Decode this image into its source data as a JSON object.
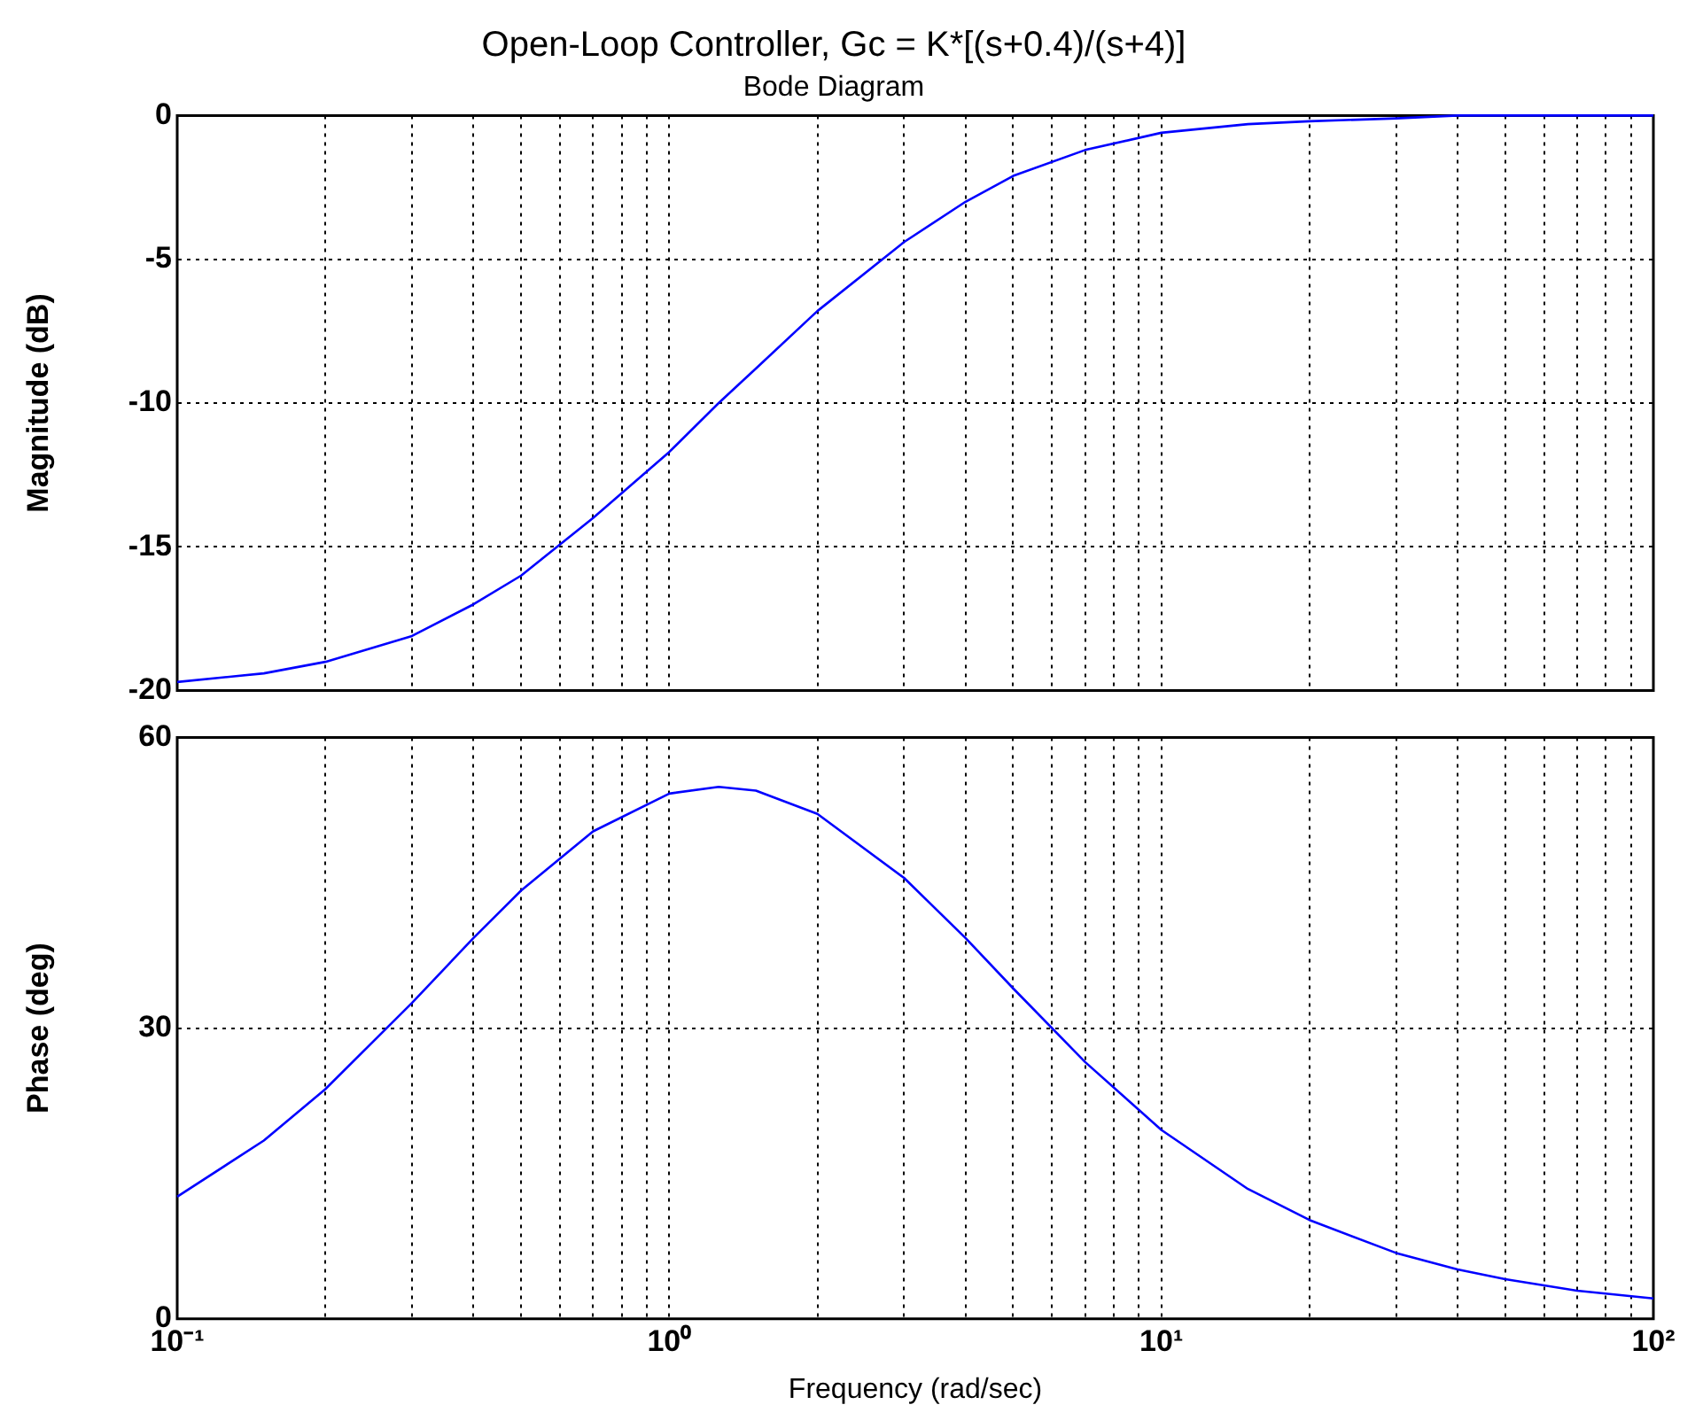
{
  "chart_data": [
    {
      "type": "line",
      "title": "Open-Loop Controller, Gc = K*[(s+0.4)/(s+4)]",
      "subtitle": "Bode Diagram",
      "ylabel": "Magnitude (dB)",
      "log": "x",
      "grid": true,
      "tick_labels": "y",
      "xlim": [
        0.1,
        100
      ],
      "xticks": [
        {
          "value": 0.1,
          "label": null
        },
        {
          "value": 0.2,
          "label": null
        },
        {
          "value": 0.3,
          "label": null
        },
        {
          "value": 0.4,
          "label": null
        },
        {
          "value": 0.5,
          "label": null
        },
        {
          "value": 0.6,
          "label": null
        },
        {
          "value": 0.7,
          "label": null
        },
        {
          "value": 0.8,
          "label": null
        },
        {
          "value": 0.9,
          "label": null
        },
        {
          "value": 1,
          "label": null
        },
        {
          "value": 2,
          "label": null
        },
        {
          "value": 3,
          "label": null
        },
        {
          "value": 4,
          "label": null
        },
        {
          "value": 5,
          "label": null
        },
        {
          "value": 6,
          "label": null
        },
        {
          "value": 7,
          "label": null
        },
        {
          "value": 8,
          "label": null
        },
        {
          "value": 9,
          "label": null
        },
        {
          "value": 10,
          "label": null
        },
        {
          "value": 20,
          "label": null
        },
        {
          "value": 30,
          "label": null
        },
        {
          "value": 40,
          "label": null
        },
        {
          "value": 50,
          "label": null
        },
        {
          "value": 60,
          "label": null
        },
        {
          "value": 70,
          "label": null
        },
        {
          "value": 80,
          "label": null
        },
        {
          "value": 90,
          "label": null
        },
        {
          "value": 100,
          "label": null
        }
      ],
      "ylim": [
        -20,
        0
      ],
      "yticks": [
        -20,
        -15,
        -10,
        -5,
        0
      ],
      "x": [
        0.1,
        0.15,
        0.2,
        0.3,
        0.4,
        0.5,
        0.7,
        1,
        1.26,
        1.5,
        2,
        3,
        4,
        5,
        7,
        10,
        15,
        20,
        30,
        40,
        50,
        70,
        100
      ],
      "series": [
        {
          "color": "#0000ff",
          "values": [
            -19.7,
            -19.4,
            -19.0,
            -18.1,
            -17.0,
            -16.0,
            -14.0,
            -11.7,
            -10.0,
            -8.8,
            -6.8,
            -4.4,
            -3.0,
            -2.1,
            -1.2,
            -0.6,
            -0.3,
            -0.2,
            -0.1,
            0,
            0,
            0,
            0
          ]
        }
      ]
    },
    {
      "type": "line",
      "ylabel": "Phase (deg)",
      "xlabel": "Frequency (rad/sec)",
      "log": "x",
      "grid": true,
      "xlim": [
        0.1,
        100
      ],
      "xticks": [
        {
          "value": 0.1,
          "label": "10⁻¹"
        },
        {
          "value": 0.2,
          "label": null
        },
        {
          "value": 0.3,
          "label": null
        },
        {
          "value": 0.4,
          "label": null
        },
        {
          "value": 0.5,
          "label": null
        },
        {
          "value": 0.6,
          "label": null
        },
        {
          "value": 0.7,
          "label": null
        },
        {
          "value": 0.8,
          "label": null
        },
        {
          "value": 0.9,
          "label": null
        },
        {
          "value": 1,
          "label": "10⁰"
        },
        {
          "value": 2,
          "label": null
        },
        {
          "value": 3,
          "label": null
        },
        {
          "value": 4,
          "label": null
        },
        {
          "value": 5,
          "label": null
        },
        {
          "value": 6,
          "label": null
        },
        {
          "value": 7,
          "label": null
        },
        {
          "value": 8,
          "label": null
        },
        {
          "value": 9,
          "label": null
        },
        {
          "value": 10,
          "label": "10¹"
        },
        {
          "value": 20,
          "label": null
        },
        {
          "value": 30,
          "label": null
        },
        {
          "value": 40,
          "label": null
        },
        {
          "value": 50,
          "label": null
        },
        {
          "value": 60,
          "label": null
        },
        {
          "value": 70,
          "label": null
        },
        {
          "value": 80,
          "label": null
        },
        {
          "value": 90,
          "label": null
        },
        {
          "value": 100,
          "label": "10²"
        }
      ],
      "ylim": [
        0,
        60
      ],
      "yticks": [
        0,
        30,
        60
      ],
      "x": [
        0.1,
        0.15,
        0.2,
        0.3,
        0.4,
        0.5,
        0.7,
        1,
        1.26,
        1.5,
        2,
        3,
        4,
        5,
        7,
        10,
        15,
        20,
        30,
        40,
        50,
        70,
        100
      ],
      "series": [
        {
          "color": "#0000ff",
          "values": [
            12.6,
            18.4,
            23.7,
            32.6,
            39.3,
            44.2,
            50.3,
            54.2,
            54.9,
            54.5,
            52.1,
            45.5,
            39.3,
            34.1,
            26.5,
            19.5,
            13.4,
            10.2,
            6.8,
            5.1,
            4.1,
            2.9,
            2.1
          ]
        }
      ]
    }
  ]
}
